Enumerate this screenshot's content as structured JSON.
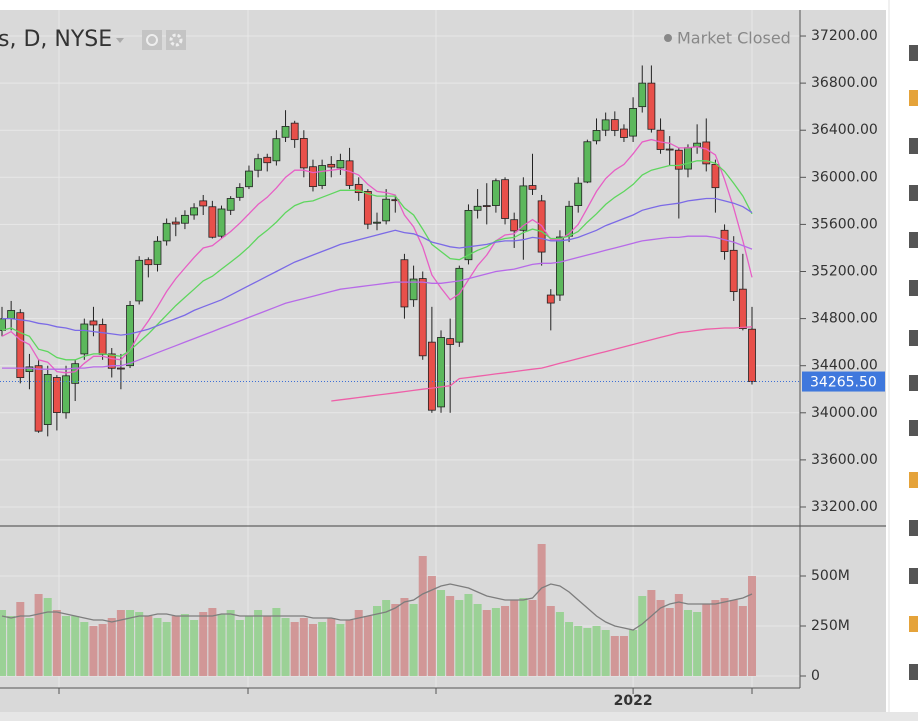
{
  "chart_data": {
    "type": "candlestick",
    "title": "s, D, NYSE",
    "status": "Market Closed",
    "open": [
      34700,
      34800,
      34850,
      34350,
      34400,
      33900,
      34300,
      34000,
      34250,
      34500,
      34780,
      34750,
      34500,
      34380,
      34400,
      34950,
      35300,
      35260,
      35460,
      35620,
      35610,
      35680,
      35800,
      35750,
      35500,
      35720,
      35830,
      35920,
      36060,
      36170,
      36140,
      36340,
      36460,
      36330,
      36090,
      35930,
      36110,
      36080,
      36140,
      35940,
      35880,
      35610,
      35630,
      35810,
      35300,
      34960,
      35140,
      34600,
      34050,
      34630,
      34600,
      35300,
      35720,
      35760,
      35760,
      35980,
      35640,
      35550,
      35930,
      35800,
      35000,
      35000,
      35500,
      35760,
      35960,
      36310,
      36400,
      36490,
      36410,
      36350,
      36600,
      36800,
      36400,
      36240,
      36230,
      36070,
      36260,
      36300,
      36110,
      35550,
      35380,
      35050,
      34710
    ],
    "high": [
      34900,
      34950,
      34880,
      34500,
      34450,
      34400,
      34320,
      34400,
      34450,
      34800,
      34900,
      34800,
      34550,
      34500,
      34950,
      35330,
      35320,
      35500,
      35650,
      35660,
      35720,
      35780,
      35850,
      35800,
      35760,
      35840,
      35950,
      36100,
      36200,
      36200,
      36400,
      36570,
      36480,
      36400,
      36150,
      36150,
      36180,
      36200,
      36250,
      36000,
      35900,
      35700,
      35900,
      35850,
      35350,
      35250,
      35200,
      34900,
      34700,
      34800,
      35250,
      35770,
      35900,
      35950,
      35990,
      36000,
      35700,
      36000,
      36200,
      35850,
      35050,
      35550,
      35800,
      36000,
      36320,
      36500,
      36550,
      36560,
      36450,
      36680,
      36950,
      36950,
      36500,
      36350,
      36250,
      36280,
      36450,
      36500,
      36150,
      35600,
      35500,
      35350,
      34900
    ],
    "low": [
      34650,
      34700,
      34250,
      34200,
      33830,
      33800,
      33850,
      33950,
      34100,
      34450,
      34650,
      34450,
      34300,
      34200,
      34380,
      34920,
      35150,
      35200,
      35420,
      35500,
      35560,
      35640,
      35680,
      35480,
      35480,
      35680,
      35800,
      35900,
      36000,
      36050,
      36100,
      36300,
      36250,
      36000,
      35880,
      35900,
      36000,
      36020,
      35900,
      35800,
      35560,
      35550,
      35600,
      35700,
      34800,
      34900,
      34450,
      34000,
      34000,
      34000,
      34560,
      35260,
      35650,
      35600,
      35700,
      35600,
      35400,
      35300,
      35850,
      35250,
      34700,
      34950,
      35450,
      35700,
      35950,
      36280,
      36350,
      36350,
      36300,
      36300,
      36550,
      36380,
      36200,
      36100,
      35650,
      36000,
      36200,
      36050,
      35700,
      35300,
      34950,
      34700,
      34240
    ],
    "close": [
      34798,
      34869,
      34299,
      34390,
      33844,
      34326,
      34002,
      34314,
      34417,
      34754,
      34746,
      34496,
      34378,
      34377,
      34912,
      35295,
      35258,
      35457,
      35609,
      35603,
      35677,
      35741,
      35757,
      35491,
      35731,
      35820,
      35913,
      36053,
      36158,
      36124,
      36328,
      36432,
      36320,
      36080,
      35921,
      36100,
      36087,
      36143,
      35931,
      35870,
      35602,
      35619,
      35814,
      35804,
      34899,
      35136,
      34484,
      34022,
      34640,
      34580,
      35227,
      35719,
      35754,
      35754,
      35971,
      35650,
      35545,
      35927,
      35898,
      35365,
      34932,
      35493,
      35754,
      35950,
      36302,
      36398,
      36488,
      36398,
      36338,
      36585,
      36800,
      36408,
      36236,
      36232,
      36069,
      36252,
      36290,
      36114,
      35912,
      35369,
      35029,
      34715,
      34265.5
    ],
    "volume": [
      330,
      300,
      370,
      290,
      410,
      390,
      330,
      300,
      300,
      270,
      250,
      260,
      290,
      330,
      330,
      320,
      300,
      290,
      270,
      300,
      310,
      280,
      320,
      340,
      310,
      330,
      280,
      300,
      330,
      300,
      340,
      290,
      270,
      290,
      260,
      270,
      290,
      260,
      280,
      330,
      300,
      350,
      380,
      360,
      390,
      360,
      600,
      500,
      430,
      400,
      380,
      410,
      360,
      330,
      340,
      350,
      380,
      390,
      380,
      660,
      350,
      320,
      270,
      250,
      240,
      250,
      230,
      200,
      200,
      230,
      400,
      430,
      380,
      340,
      410,
      330,
      320,
      360,
      380,
      390,
      380,
      350,
      500
    ],
    "up_color": "#5cb85c",
    "down_color": "#e8504a",
    "volume_up_color": "#94cf8e",
    "volume_down_color": "#cf8f8f",
    "series": [
      {
        "color": "#e75fc5",
        "values": [
          34650,
          34690,
          34620,
          34580,
          34450,
          34430,
          34350,
          34340,
          34350,
          34420,
          34480,
          34480,
          34460,
          34450,
          34530,
          34670,
          34780,
          34900,
          35030,
          35140,
          35230,
          35320,
          35400,
          35420,
          35480,
          35540,
          35610,
          35690,
          35770,
          35830,
          35910,
          36000,
          36060,
          36060,
          36040,
          36050,
          36060,
          36070,
          36050,
          36020,
          35940,
          35880,
          35870,
          35850,
          35680,
          35580,
          35410,
          35170,
          35060,
          34960,
          35010,
          35130,
          35250,
          35340,
          35460,
          35510,
          35520,
          35590,
          35640,
          35590,
          35470,
          35470,
          35520,
          35600,
          35740,
          35880,
          35990,
          36060,
          36110,
          36200,
          36300,
          36320,
          36300,
          36290,
          36250,
          36250,
          36260,
          36240,
          36190,
          35980,
          35740,
          35460,
          35150
        ]
      },
      {
        "color": "#5ed65e",
        "values": [
          34700,
          34720,
          34680,
          34650,
          34540,
          34520,
          34470,
          34450,
          34450,
          34480,
          34500,
          34500,
          34490,
          34480,
          34530,
          34600,
          34670,
          34750,
          34830,
          34910,
          34980,
          35050,
          35120,
          35160,
          35220,
          35280,
          35340,
          35410,
          35490,
          35550,
          35620,
          35700,
          35760,
          35790,
          35800,
          35830,
          35860,
          35890,
          35890,
          35890,
          35860,
          35840,
          35840,
          35840,
          35740,
          35680,
          35560,
          35430,
          35370,
          35310,
          35300,
          35340,
          35380,
          35410,
          35460,
          35480,
          35490,
          35530,
          35560,
          35540,
          35480,
          35480,
          35500,
          35540,
          35620,
          35690,
          35770,
          35830,
          35880,
          35940,
          36020,
          36060,
          36080,
          36100,
          36100,
          36120,
          36140,
          36140,
          36120,
          36050,
          35950,
          35840,
          35690
        ]
      },
      {
        "color": "#7b6ae6",
        "values": [
          34800,
          34800,
          34790,
          34780,
          34760,
          34750,
          34730,
          34720,
          34700,
          34700,
          34690,
          34680,
          34670,
          34660,
          34670,
          34690,
          34710,
          34740,
          34770,
          34800,
          34830,
          34870,
          34900,
          34930,
          34960,
          35000,
          35040,
          35080,
          35120,
          35160,
          35200,
          35240,
          35280,
          35310,
          35340,
          35370,
          35400,
          35430,
          35450,
          35470,
          35490,
          35510,
          35530,
          35550,
          35530,
          35520,
          35490,
          35450,
          35430,
          35410,
          35400,
          35410,
          35420,
          35430,
          35450,
          35460,
          35460,
          35470,
          35490,
          35480,
          35460,
          35460,
          35470,
          35490,
          35520,
          35550,
          35590,
          35620,
          35650,
          35680,
          35720,
          35740,
          35760,
          35770,
          35780,
          35800,
          35810,
          35820,
          35820,
          35800,
          35780,
          35750,
          35700
        ]
      },
      {
        "color": "#b76ae8",
        "values": [
          34380,
          34380,
          34380,
          34380,
          34370,
          34370,
          34370,
          34370,
          34380,
          34380,
          34390,
          34390,
          34400,
          34400,
          34420,
          34450,
          34480,
          34510,
          34540,
          34570,
          34600,
          34630,
          34660,
          34690,
          34720,
          34750,
          34780,
          34810,
          34840,
          34870,
          34900,
          34930,
          34950,
          34970,
          34990,
          35010,
          35030,
          35050,
          35060,
          35070,
          35080,
          35090,
          35100,
          35110,
          35110,
          35110,
          35110,
          35100,
          35100,
          35110,
          35120,
          35140,
          35160,
          35180,
          35200,
          35210,
          35220,
          35240,
          35260,
          35270,
          35270,
          35280,
          35300,
          35320,
          35340,
          35360,
          35380,
          35400,
          35420,
          35440,
          35460,
          35470,
          35480,
          35490,
          35490,
          35500,
          35500,
          35500,
          35490,
          35470,
          35450,
          35420,
          35390
        ]
      },
      {
        "color": "#ee5fa8",
        "values": [
          null,
          null,
          null,
          null,
          null,
          null,
          null,
          null,
          null,
          null,
          null,
          null,
          null,
          null,
          null,
          null,
          null,
          null,
          null,
          null,
          null,
          null,
          null,
          null,
          null,
          null,
          null,
          null,
          null,
          null,
          null,
          null,
          null,
          null,
          null,
          null,
          34100,
          34110,
          34120,
          34130,
          34140,
          34150,
          34160,
          34170,
          34180,
          34190,
          34200,
          34210,
          34220,
          34230,
          34290,
          34300,
          34310,
          34320,
          34330,
          34340,
          34350,
          34360,
          34370,
          34380,
          34400,
          34420,
          34440,
          34460,
          34480,
          34500,
          34520,
          34540,
          34560,
          34580,
          34600,
          34620,
          34640,
          34660,
          34680,
          34690,
          34700,
          34710,
          34715,
          34720,
          34720,
          34725,
          34730
        ]
      }
    ],
    "volume_series": {
      "color": "#7d7d7d",
      "values": [
        300,
        290,
        300,
        300,
        310,
        320,
        320,
        310,
        300,
        290,
        280,
        280,
        270,
        280,
        290,
        300,
        300,
        310,
        310,
        300,
        300,
        300,
        300,
        300,
        310,
        310,
        300,
        300,
        300,
        300,
        300,
        300,
        300,
        300,
        290,
        290,
        290,
        280,
        280,
        290,
        300,
        310,
        320,
        340,
        370,
        380,
        410,
        430,
        450,
        460,
        450,
        440,
        420,
        400,
        390,
        380,
        380,
        380,
        390,
        440,
        460,
        450,
        420,
        380,
        340,
        300,
        270,
        250,
        240,
        230,
        260,
        300,
        340,
        360,
        370,
        360,
        360,
        360,
        360,
        370,
        380,
        390,
        410
      ]
    },
    "ylim": [
      33047,
      37421
    ],
    "yticks": [
      {
        "value": 33200,
        "label": "33200.00"
      },
      {
        "value": 33600,
        "label": "33600.00"
      },
      {
        "value": 34000,
        "label": "34000.00"
      },
      {
        "value": 34400,
        "label": "34400.00"
      },
      {
        "value": 34800,
        "label": "34800.00"
      },
      {
        "value": 35200,
        "label": "35200.00"
      },
      {
        "value": 35600,
        "label": "35600.00"
      },
      {
        "value": 36000,
        "label": "36000.00"
      },
      {
        "value": 36400,
        "label": "36400.00"
      },
      {
        "value": 36800,
        "label": "36800.00"
      },
      {
        "value": 37200,
        "label": "37200.00"
      }
    ],
    "volume_ylim": [
      -60,
      745
    ],
    "volume_yticks": [
      0,
      {
        "value": 250,
        "label": "250M"
      },
      {
        "value": 500,
        "label": "500M"
      }
    ],
    "last_price": {
      "value": 34265.5,
      "label": "34265.50"
    },
    "xticks": [
      {
        "value": 69,
        "label": "2022"
      }
    ],
    "grid": true
  }
}
